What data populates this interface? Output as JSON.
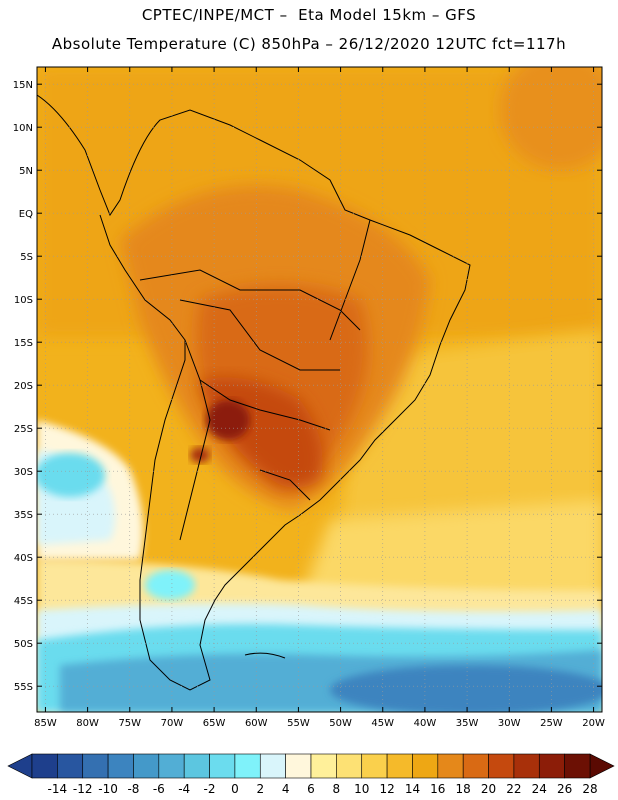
{
  "header": {
    "line1": "CPTEC/INPE/MCT –  Eta Model 15km – GFS",
    "line2": "Absolute Temperature (C) 850hPa – 26/12/2020 12UTC fct=117h"
  },
  "map": {
    "lat_labels": [
      "15N",
      "10N",
      "5N",
      "EQ",
      "5S",
      "10S",
      "15S",
      "20S",
      "25S",
      "30S",
      "35S",
      "40S",
      "45S",
      "50S",
      "55S"
    ],
    "lat_values": [
      15,
      10,
      5,
      0,
      -5,
      -10,
      -15,
      -20,
      -25,
      -30,
      -35,
      -40,
      -45,
      -50,
      -55
    ],
    "lon_labels": [
      "85W",
      "80W",
      "75W",
      "70W",
      "65W",
      "60W",
      "55W",
      "50W",
      "45W",
      "40W",
      "35W",
      "30W",
      "25W",
      "20W"
    ],
    "lon_values": [
      -85,
      -80,
      -75,
      -70,
      -65,
      -60,
      -55,
      -50,
      -45,
      -40,
      -35,
      -30,
      -25,
      -20
    ],
    "lat_range": [
      -58,
      17
    ],
    "lon_range": [
      -86,
      -19
    ]
  },
  "colorbar": {
    "labels": [
      "-14",
      "-12",
      "-10",
      "-8",
      "-6",
      "-4",
      "-2",
      "0",
      "2",
      "4",
      "6",
      "8",
      "10",
      "12",
      "14",
      "16",
      "18",
      "20",
      "22",
      "24",
      "26",
      "28"
    ],
    "colors": [
      "#1e3f8c",
      "#2856a0",
      "#3470b1",
      "#3c84bf",
      "#4499c9",
      "#52aed5",
      "#5cc6e0",
      "#6bdcee",
      "#7ff2fa",
      "#d9f5fb",
      "#fff7dc",
      "#fff09a",
      "#fde174",
      "#fad04c",
      "#f5ba2a",
      "#eea714",
      "#e5881a",
      "#d96a14",
      "#c5490e",
      "#a8300a",
      "#8c1d08",
      "#6c1004"
    ]
  }
}
